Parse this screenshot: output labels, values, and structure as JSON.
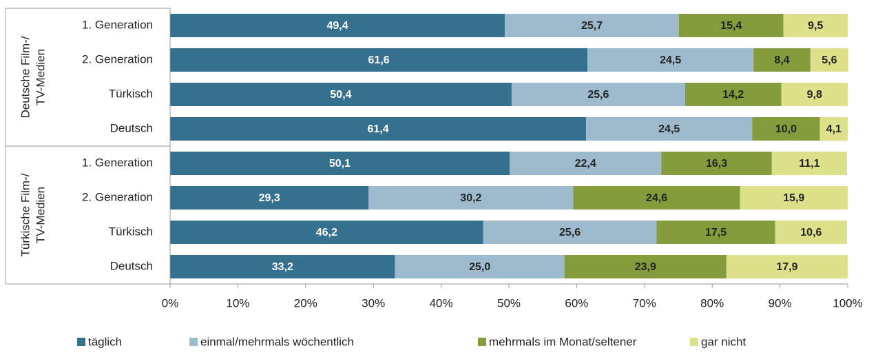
{
  "chart_data": {
    "type": "stacked_barh",
    "categories": [
      "1. Generation",
      "2. Generation",
      "Türkisch",
      "Deutsch",
      "1. Generation",
      "2. Generation",
      "Türkisch",
      "Deutsch"
    ],
    "groups": [
      {
        "lines": [
          "Deutsche Film-/",
          "TV-Medien"
        ]
      },
      {
        "lines": [
          "Türkische Film-/",
          "TV-Medien"
        ]
      }
    ],
    "series": [
      {
        "name": "täglich",
        "color": "#35708f",
        "label_color": "#ffffff",
        "values": [
          49.4,
          61.6,
          50.4,
          61.4,
          50.1,
          29.3,
          46.2,
          33.2
        ],
        "value_labels": [
          "49,4",
          "61,6",
          "50,4",
          "61,4",
          "50,1",
          "29,3",
          "46,2",
          "33,2"
        ]
      },
      {
        "name": "einmal/mehrmals wöchentlich",
        "color": "#9ebbce",
        "label_color": "#222222",
        "values": [
          25.7,
          24.5,
          25.6,
          24.5,
          22.4,
          30.2,
          25.6,
          25.0
        ],
        "value_labels": [
          "25,7",
          "24,5",
          "25,6",
          "24,5",
          "22,4",
          "30,2",
          "25,6",
          "25,0"
        ]
      },
      {
        "name": "mehrmals im Monat/seltener",
        "color": "#859c3c",
        "label_color": "#222222",
        "values": [
          15.4,
          8.4,
          14.2,
          10.0,
          16.3,
          24.6,
          17.5,
          23.9
        ],
        "value_labels": [
          "15,4",
          "8,4",
          "14,2",
          "10,0",
          "16,3",
          "24,6",
          "17,5",
          "23,9"
        ]
      },
      {
        "name": "gar nicht",
        "color": "#dde18b",
        "label_color": "#222222",
        "values": [
          9.5,
          5.6,
          9.8,
          4.1,
          11.1,
          15.9,
          10.6,
          17.9
        ],
        "value_labels": [
          "9,5",
          "5,6",
          "9,8",
          "4,1",
          "11,1",
          "15,9",
          "10,6",
          "17,9"
        ]
      }
    ],
    "xlim": [
      0,
      100
    ],
    "xticks": [
      {
        "value": 0,
        "label": "0%"
      },
      {
        "value": 10,
        "label": "10%"
      },
      {
        "value": 20,
        "label": "20%"
      },
      {
        "value": 30,
        "label": "30%"
      },
      {
        "value": 40,
        "label": "40%"
      },
      {
        "value": 50,
        "label": "50%"
      },
      {
        "value": 60,
        "label": "60%"
      },
      {
        "value": 70,
        "label": "70%"
      },
      {
        "value": 80,
        "label": "80%"
      },
      {
        "value": 90,
        "label": "90%"
      },
      {
        "value": 100,
        "label": "100%"
      }
    ],
    "legend": "bottom"
  }
}
